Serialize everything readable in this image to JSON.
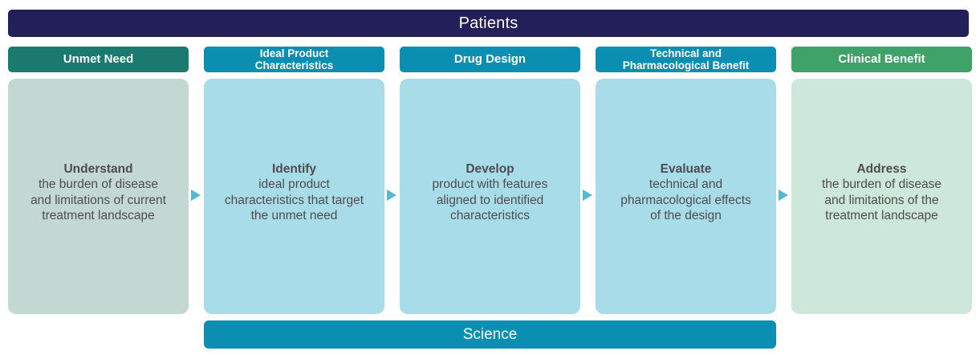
{
  "top_banner": {
    "label": "Patients",
    "bg_color": "#221f5a",
    "text_color": "#ffffff"
  },
  "bottom_banner": {
    "label": "Science",
    "bg_color": "#0a8fb2",
    "text_color": "#ffffff",
    "spans_columns": [
      "Ideal Product Characteristics",
      "Drug Design",
      "Technical and Pharmacological Benefit"
    ]
  },
  "arrow": {
    "direction": "right",
    "color": "#57b8ce"
  },
  "columns": [
    {
      "header": "Unmet Need",
      "header_bg": "#1a7a70",
      "box_bg": "#c4d8d3",
      "lead": "Understand",
      "body": "the burden of disease\nand limitations of current\ntreatment landscape"
    },
    {
      "header": "Ideal Product\nCharacteristics",
      "header_bg": "#0a8fb2",
      "box_bg": "#a9dce9",
      "lead": "Identify",
      "body": "ideal product\ncharacteristics that target\nthe unmet need"
    },
    {
      "header": "Drug Design",
      "header_bg": "#0a8fb2",
      "box_bg": "#a9dce9",
      "lead": "Develop",
      "body": "product with features\naligned to identified\ncharacteristics"
    },
    {
      "header": "Technical and\nPharmacological Benefit",
      "header_bg": "#0a8fb2",
      "box_bg": "#a9dce9",
      "lead": "Evaluate",
      "body": "technical and\npharmacological effects\nof the design"
    },
    {
      "header": "Clinical Benefit",
      "header_bg": "#3fa369",
      "box_bg": "#cde7da",
      "lead": "Address",
      "body": "the burden of disease\nand limitations of the\ntreatment landscape"
    }
  ],
  "text_color_body": "#4d4d4d"
}
